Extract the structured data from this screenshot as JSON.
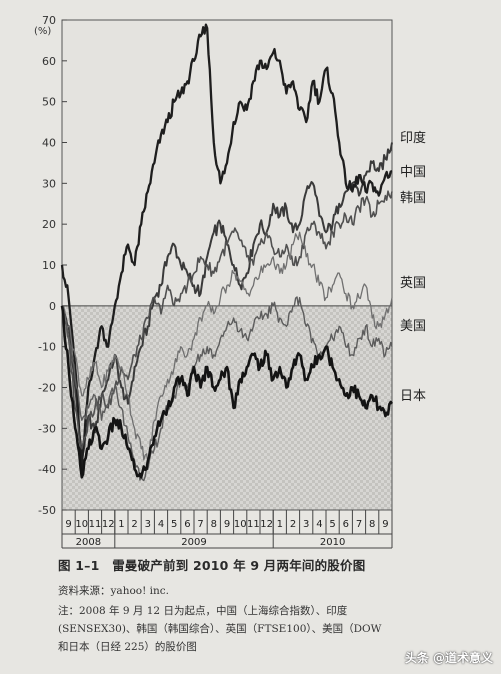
{
  "chart_data": {
    "type": "line",
    "title": "",
    "ylabel": "(%)",
    "ylim": [
      -50,
      70
    ],
    "yticks": [
      70,
      60,
      50,
      40,
      30,
      20,
      10,
      0,
      -10,
      -20,
      -30,
      -40,
      -50
    ],
    "months": [
      "9",
      "10",
      "11",
      "12",
      "1",
      "2",
      "3",
      "4",
      "5",
      "6",
      "7",
      "8",
      "9",
      "10",
      "11",
      "12",
      "1",
      "2",
      "3",
      "4",
      "5",
      "6",
      "7",
      "8",
      "9"
    ],
    "years": [
      {
        "label": "2008",
        "start": 0,
        "end": 4
      },
      {
        "label": "2009",
        "start": 4,
        "end": 16
      },
      {
        "label": "2010",
        "start": 16,
        "end": 25
      }
    ],
    "negative_region_shaded": true,
    "series": [
      {
        "name": "印度",
        "color": "#3a3a3a",
        "width": 2.0,
        "x": [
          0,
          0.5,
          1,
          1.5,
          2,
          2.5,
          3,
          3.5,
          4,
          4.5,
          5,
          5.5,
          6,
          6.5,
          7,
          7.5,
          8,
          8.5,
          9,
          9.5,
          10,
          10.5,
          11,
          11.5,
          12,
          12.5,
          13,
          13.5,
          14,
          14.5,
          15,
          15.5,
          16,
          16.5,
          17,
          17.5,
          18,
          18.5,
          19,
          19.5,
          20,
          20.5,
          21,
          21.5,
          22,
          22.5,
          23,
          23.5,
          24,
          24.5,
          25
        ],
        "y": [
          0,
          -5,
          -20,
          -38,
          -27,
          -31,
          -22,
          -18,
          -12,
          -20,
          -24,
          -15,
          -10,
          -5,
          2,
          5,
          12,
          15,
          10,
          8,
          5,
          3,
          12,
          18,
          20,
          15,
          10,
          5,
          8,
          15,
          20,
          18,
          25,
          22,
          24,
          18,
          20,
          28,
          30,
          22,
          18,
          20,
          25,
          28,
          30,
          27,
          32,
          35,
          33,
          36,
          40
        ]
      },
      {
        "name": "中国",
        "color": "#1e1e1e",
        "width": 2.3,
        "x": [
          0,
          0.5,
          1,
          1.5,
          2,
          2.5,
          3,
          3.5,
          4,
          4.5,
          5,
          5.5,
          6,
          6.5,
          7,
          7.5,
          8,
          8.5,
          9,
          9.5,
          10,
          10.5,
          11,
          11.5,
          12,
          12.5,
          13,
          13.5,
          14,
          14.5,
          15,
          15.5,
          16,
          16.5,
          17,
          17.5,
          18,
          18.5,
          19,
          19.5,
          20,
          20.5,
          21,
          21.5,
          22,
          22.5,
          23,
          23.5,
          24,
          24.5,
          25
        ],
        "y": [
          10,
          2,
          -15,
          -40,
          -20,
          -12,
          -5,
          -10,
          0,
          8,
          15,
          10,
          20,
          28,
          35,
          42,
          45,
          50,
          52,
          55,
          60,
          66,
          68,
          40,
          30,
          35,
          45,
          50,
          48,
          55,
          60,
          58,
          62,
          60,
          52,
          55,
          48,
          45,
          55,
          50,
          58,
          52,
          40,
          30,
          28,
          32,
          28,
          30,
          27,
          32,
          33
        ]
      },
      {
        "name": "韩国",
        "color": "#505050",
        "width": 1.6,
        "x": [
          0,
          0.5,
          1,
          1.5,
          2,
          2.5,
          3,
          3.5,
          4,
          4.5,
          5,
          5.5,
          6,
          6.5,
          7,
          7.5,
          8,
          8.5,
          9,
          9.5,
          10,
          10.5,
          11,
          11.5,
          12,
          12.5,
          13,
          13.5,
          14,
          14.5,
          15,
          15.5,
          16,
          16.5,
          17,
          17.5,
          18,
          18.5,
          19,
          19.5,
          20,
          20.5,
          21,
          21.5,
          22,
          22.5,
          23,
          23.5,
          24,
          24.5,
          25
        ],
        "y": [
          0,
          -8,
          -25,
          -35,
          -28,
          -25,
          -22,
          -25,
          -20,
          -15,
          -18,
          -12,
          -8,
          -3,
          2,
          -2,
          5,
          0,
          3,
          5,
          8,
          12,
          10,
          8,
          12,
          15,
          18,
          16,
          12,
          10,
          15,
          18,
          14,
          12,
          15,
          10,
          12,
          18,
          20,
          18,
          14,
          18,
          20,
          22,
          20,
          24,
          26,
          22,
          25,
          27,
          28
        ]
      },
      {
        "name": "英国",
        "color": "#707070",
        "width": 1.3,
        "x": [
          0,
          0.5,
          1,
          1.5,
          2,
          2.5,
          3,
          3.5,
          4,
          4.5,
          5,
          5.5,
          6,
          6.5,
          7,
          7.5,
          8,
          8.5,
          9,
          9.5,
          10,
          10.5,
          11,
          11.5,
          12,
          12.5,
          13,
          13.5,
          14,
          14.5,
          15,
          15.5,
          16,
          16.5,
          17,
          17.5,
          18,
          18.5,
          19,
          19.5,
          20,
          20.5,
          21,
          21.5,
          22,
          22.5,
          23,
          23.5,
          24,
          24.5,
          25
        ],
        "y": [
          0,
          -5,
          -12,
          -22,
          -18,
          -14,
          -20,
          -16,
          -12,
          -15,
          -22,
          -30,
          -35,
          -38,
          -28,
          -22,
          -18,
          -15,
          -10,
          -12,
          -8,
          -3,
          0,
          -2,
          2,
          5,
          8,
          6,
          3,
          5,
          8,
          10,
          12,
          8,
          10,
          15,
          18,
          12,
          10,
          5,
          2,
          5,
          8,
          3,
          0,
          2,
          5,
          -3,
          -5,
          -2,
          2
        ]
      },
      {
        "name": "美国",
        "color": "#5c5c5c",
        "width": 1.4,
        "x": [
          0,
          0.5,
          1,
          1.5,
          2,
          2.5,
          3,
          3.5,
          4,
          4.5,
          5,
          5.5,
          6,
          6.5,
          7,
          7.5,
          8,
          8.5,
          9,
          9.5,
          10,
          10.5,
          11,
          11.5,
          12,
          12.5,
          13,
          13.5,
          14,
          14.5,
          15,
          15.5,
          16,
          16.5,
          17,
          17.5,
          18,
          18.5,
          19,
          19.5,
          20,
          20.5,
          21,
          21.5,
          22,
          22.5,
          23,
          23.5,
          24,
          24.5,
          25
        ],
        "y": [
          0,
          -8,
          -18,
          -28,
          -25,
          -22,
          -28,
          -24,
          -20,
          -25,
          -32,
          -38,
          -42,
          -40,
          -35,
          -30,
          -25,
          -22,
          -18,
          -20,
          -15,
          -12,
          -10,
          -12,
          -8,
          -5,
          -3,
          -6,
          -8,
          -5,
          -3,
          -2,
          0,
          -3,
          -5,
          0,
          2,
          -5,
          -8,
          -12,
          -10,
          -8,
          -5,
          -10,
          -12,
          -8,
          -5,
          -10,
          -8,
          -12,
          -10
        ]
      },
      {
        "name": "日本",
        "color": "#141414",
        "width": 2.6,
        "x": [
          0,
          0.5,
          1,
          1.5,
          2,
          2.5,
          3,
          3.5,
          4,
          4.5,
          5,
          5.5,
          6,
          6.5,
          7,
          7.5,
          8,
          8.5,
          9,
          9.5,
          10,
          10.5,
          11,
          11.5,
          12,
          12.5,
          13,
          13.5,
          14,
          14.5,
          15,
          15.5,
          16,
          16.5,
          17,
          17.5,
          18,
          18.5,
          19,
          19.5,
          20,
          20.5,
          21,
          21.5,
          22,
          22.5,
          23,
          23.5,
          24,
          24.5,
          25
        ],
        "y": [
          0,
          -15,
          -30,
          -42,
          -35,
          -30,
          -35,
          -32,
          -28,
          -30,
          -35,
          -40,
          -42,
          -38,
          -32,
          -28,
          -25,
          -20,
          -18,
          -22,
          -15,
          -20,
          -15,
          -20,
          -18,
          -15,
          -25,
          -18,
          -15,
          -12,
          -15,
          -12,
          -18,
          -15,
          -20,
          -15,
          -12,
          -18,
          -15,
          -12,
          -10,
          -15,
          -18,
          -22,
          -20,
          -22,
          -25,
          -22,
          -25,
          -27,
          -24
        ]
      }
    ]
  },
  "caption": "图 1–1　雷曼破产前到 2010 年 9 月两年间的股价图",
  "source": "资料来源：yahoo! inc.",
  "note_line1": "注：2008 年 9 月 12 日为起点，中国（上海综合指数）、印度",
  "note_line2": "(SENSEX30)、韩国（韩国综合）、英国（FTSE100）、美国（DOW",
  "note_line3": "和日本（日经 225）的股价图",
  "watermark": "头条 @道术意义"
}
